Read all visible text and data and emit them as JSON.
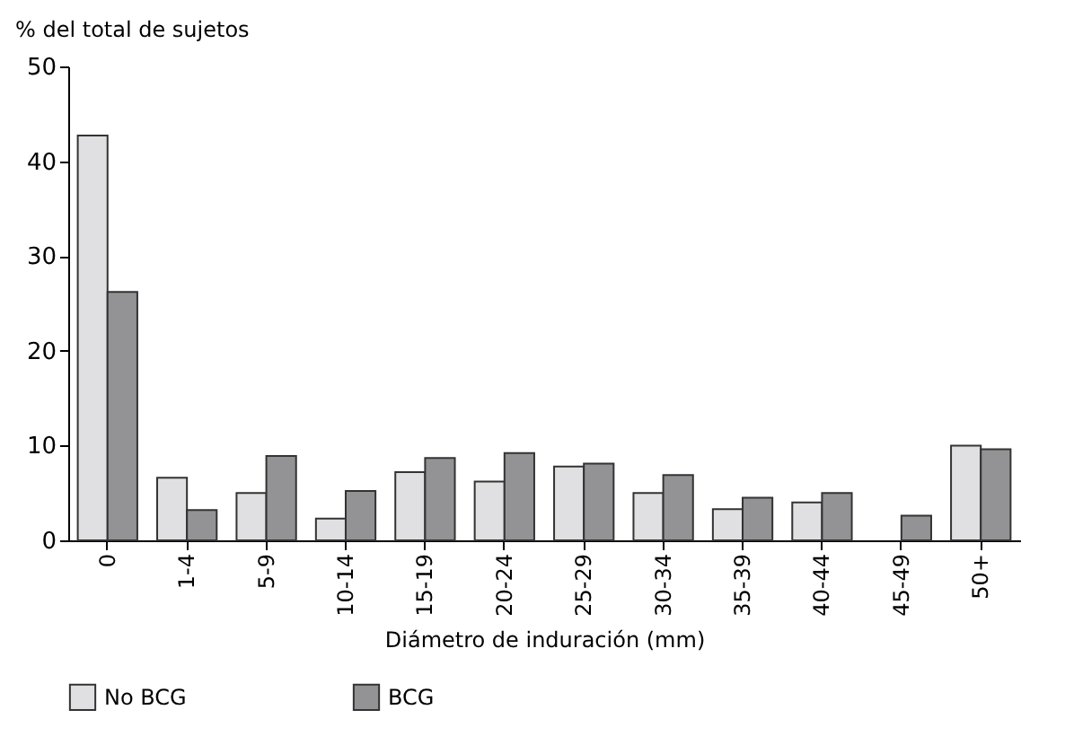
{
  "chart_data": {
    "type": "bar",
    "ylabel": "% del total de sujetos",
    "xlabel": "Diámetro de induración (mm)",
    "categories": [
      "0",
      "1-4",
      "5-9",
      "10-14",
      "15-19",
      "20-24",
      "25-29",
      "30-34",
      "35-39",
      "40-44",
      "45-49",
      "50+"
    ],
    "series": [
      {
        "name": "No BCG",
        "color": "#e0e0e2",
        "values": [
          42.7,
          6.6,
          5.0,
          2.3,
          7.2,
          6.2,
          7.8,
          5.0,
          3.3,
          4.0,
          null,
          10.0
        ]
      },
      {
        "name": "BCG",
        "color": "#939396",
        "values": [
          26.2,
          3.2,
          8.9,
          5.2,
          8.7,
          9.2,
          8.1,
          6.9,
          4.5,
          5.0,
          2.6,
          9.6
        ]
      }
    ],
    "ylim": [
      0,
      50
    ],
    "yticks": [
      0,
      10,
      20,
      30,
      40,
      50
    ],
    "grid": false,
    "legend": "bottom"
  }
}
